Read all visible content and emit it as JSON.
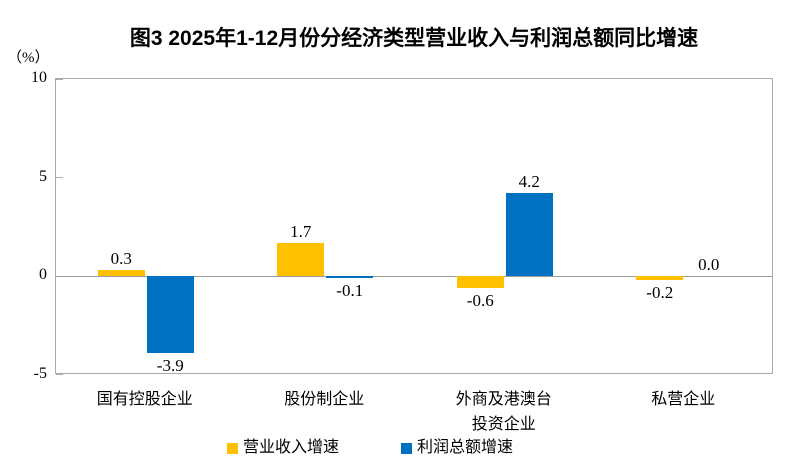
{
  "chart_data": {
    "type": "bar",
    "title": "图3  2025年1-12月份分经济类型营业收入与利润总额同比增速",
    "ylabel": "（%）",
    "categories": [
      "国有控股企业",
      "股份制企业",
      "外商及港澳台\n投资企业",
      "私营企业"
    ],
    "series": [
      {
        "name": "营业收入增速",
        "color": "#FFC000",
        "values": [
          0.3,
          1.7,
          -0.6,
          -0.2
        ]
      },
      {
        "name": "利润总额增速",
        "color": "#0070C0",
        "values": [
          -3.9,
          -0.1,
          4.2,
          0.0
        ]
      }
    ],
    "ylim": [
      -5,
      10
    ],
    "yticks": [
      10,
      5,
      0,
      -5
    ],
    "grid": false,
    "value_labels": true,
    "value_label_decimals": 1,
    "legend_position": "bottom"
  },
  "colors": {
    "revenue_series": "#FFC000",
    "profit_series": "#0070C0",
    "plot_border": "#ABABAB",
    "zero_line": "#9B9B9B",
    "text": "#000000",
    "background": "#FFFFFF"
  }
}
